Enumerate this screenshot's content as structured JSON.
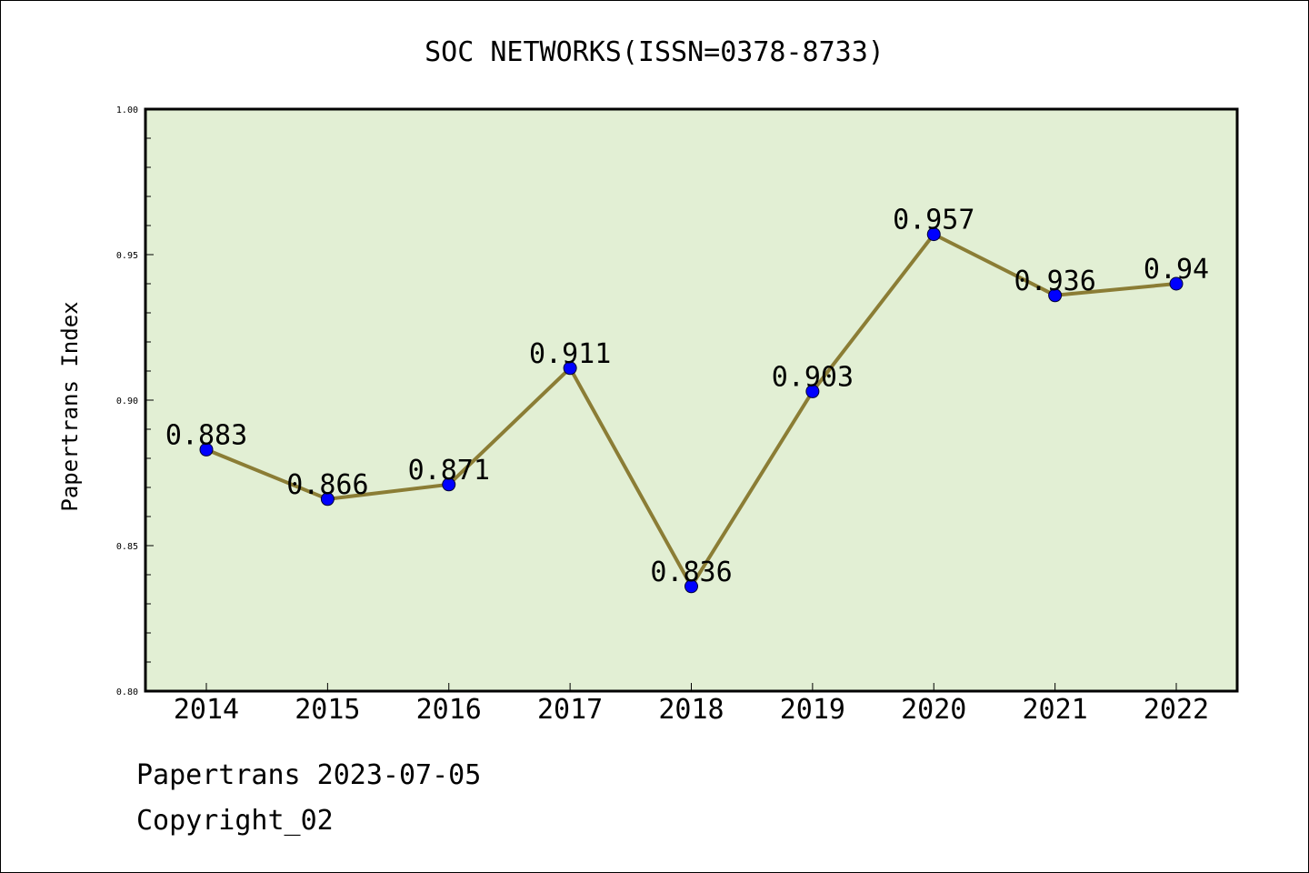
{
  "chart_data": {
    "type": "line",
    "title": "SOC NETWORKS(ISSN=0378-8733)",
    "xlabel": "",
    "ylabel": "Papertrans Index",
    "categories": [
      "2014",
      "2015",
      "2016",
      "2017",
      "2018",
      "2019",
      "2020",
      "2021",
      "2022"
    ],
    "series": [
      {
        "values": [
          0.883,
          0.866,
          0.871,
          0.911,
          0.836,
          0.903,
          0.957,
          0.936,
          0.94
        ],
        "labels": [
          "0.883",
          "0.866",
          "0.871",
          "0.911",
          "0.836",
          "0.903",
          "0.957",
          "0.936",
          "0.94"
        ]
      }
    ],
    "ylim": [
      0.8,
      1.0
    ],
    "yticks": [
      "0.80",
      "0.85",
      "0.90",
      "0.95",
      "1.00"
    ],
    "grid": false,
    "legend": "none",
    "colors": {
      "plot_background": "#e2efd4",
      "line": "#8b7d35",
      "marker": "#0000ff"
    }
  },
  "footer": {
    "line1": "Papertrans 2023-07-05",
    "line2": "Copyright_02"
  }
}
